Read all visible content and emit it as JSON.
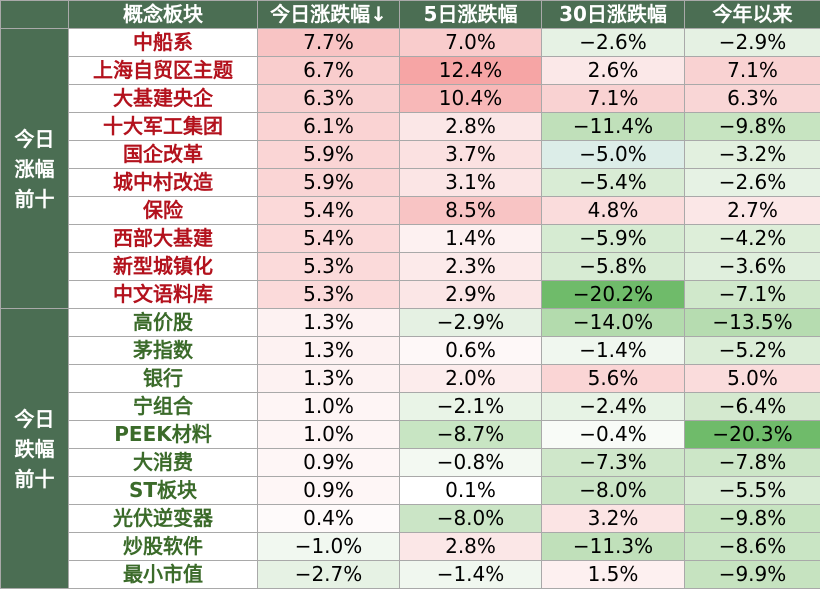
{
  "headers": [
    "概念板块",
    "今日涨跌幅↓",
    "5日涨跌幅",
    "30日涨跌幅",
    "今年以来"
  ],
  "groups": [
    {
      "label": "今日涨幅前十",
      "type": "top",
      "rows": [
        {
          "name": "中船系",
          "values": [
            "7.7%",
            "7.0%",
            "−2.6%",
            "−2.9%"
          ],
          "colors": [
            "#f8c4c4",
            "#f9cccc",
            "#e6f2e4",
            "#e5f1e3"
          ]
        },
        {
          "name": "上海自贸区主题",
          "values": [
            "6.7%",
            "12.4%",
            "2.6%",
            "7.1%"
          ],
          "colors": [
            "#f9cdcd",
            "#f6a5a5",
            "#fbe8e8",
            "#f9d2d2"
          ]
        },
        {
          "name": "大基建央企",
          "values": [
            "6.3%",
            "10.4%",
            "7.1%",
            "6.3%"
          ],
          "colors": [
            "#f9d0d0",
            "#f8b8b8",
            "#f9d2d2",
            "#f9d6d6"
          ]
        },
        {
          "name": "十大军工集团",
          "values": [
            "6.1%",
            "2.8%",
            "−11.4%",
            "−9.8%"
          ],
          "colors": [
            "#fad3d3",
            "#fbe7e7",
            "#c0e0ba",
            "#c7e4c1"
          ]
        },
        {
          "name": "国企改革",
          "values": [
            "5.9%",
            "3.7%",
            "−5.0%",
            "−3.2%"
          ],
          "colors": [
            "#fad5d5",
            "#fbe1e1",
            "#dcede8",
            "#e2f0df"
          ]
        },
        {
          "name": "城中村改造",
          "values": [
            "5.9%",
            "3.1%",
            "−5.4%",
            "−2.6%"
          ],
          "colors": [
            "#fad5d5",
            "#fbe5e5",
            "#d9ecd5",
            "#e6f2e4"
          ]
        },
        {
          "name": "保险",
          "values": [
            "5.4%",
            "8.5%",
            "4.8%",
            "2.7%"
          ],
          "colors": [
            "#fbd9d9",
            "#f8c4c4",
            "#fadcdc",
            "#fbe7e7"
          ]
        },
        {
          "name": "西部大基建",
          "values": [
            "5.4%",
            "1.4%",
            "−5.9%",
            "−4.2%"
          ],
          "colors": [
            "#fbd9d9",
            "#fdf1f1",
            "#d6ebd2",
            "#ddeed9"
          ]
        },
        {
          "name": "新型城镇化",
          "values": [
            "5.3%",
            "2.3%",
            "−5.8%",
            "−3.6%"
          ],
          "colors": [
            "#fbdada",
            "#fceaea",
            "#d7ebd3",
            "#e0efdd"
          ]
        },
        {
          "name": "中文语料库",
          "values": [
            "5.3%",
            "2.9%",
            "−20.2%",
            "−7.1%"
          ],
          "colors": [
            "#fbdada",
            "#fbe6e6",
            "#6fbb6a",
            "#d0e8cb"
          ]
        }
      ]
    },
    {
      "label": "今日跌幅前十",
      "type": "bottom",
      "rows": [
        {
          "name": "高价股",
          "values": [
            "1.3%",
            "−2.9%",
            "−14.0%",
            "−13.5%"
          ],
          "colors": [
            "#fdf2f2",
            "#e5f1e3",
            "#b3dbad",
            "#b6dcb0"
          ]
        },
        {
          "name": "茅指数",
          "values": [
            "1.3%",
            "0.6%",
            "−1.4%",
            "−5.2%"
          ],
          "colors": [
            "#fdf2f2",
            "#fef8f8",
            "#f0f7ef",
            "#dbedd7"
          ]
        },
        {
          "name": "银行",
          "values": [
            "1.3%",
            "2.0%",
            "5.6%",
            "5.0%"
          ],
          "colors": [
            "#fdf2f2",
            "#fcecec",
            "#fad5d5",
            "#fadcdc"
          ]
        },
        {
          "name": "宁组合",
          "values": [
            "1.0%",
            "−2.1%",
            "−2.4%",
            "−6.4%"
          ],
          "colors": [
            "#fef5f5",
            "#e9f4e7",
            "#e7f3e5",
            "#d4e9cf"
          ]
        },
        {
          "name": "PEEK材料",
          "values": [
            "1.0%",
            "−8.7%",
            "−0.4%",
            "−20.3%"
          ],
          "colors": [
            "#fef5f5",
            "#c8e5c3",
            "#f8fbf7",
            "#6fbb6a"
          ]
        },
        {
          "name": "大消费",
          "values": [
            "0.9%",
            "−0.8%",
            "−7.3%",
            "−7.8%"
          ],
          "colors": [
            "#fef6f6",
            "#f3f9f2",
            "#cfe7ca",
            "#cce6c7"
          ]
        },
        {
          "name": "ST板块",
          "values": [
            "0.9%",
            "0.1%",
            "−8.0%",
            "−5.5%"
          ],
          "colors": [
            "#fef6f6",
            "#ffffff",
            "#cbe5c6",
            "#d9ecd5"
          ]
        },
        {
          "name": "光伏逆变器",
          "values": [
            "0.4%",
            "−8.0%",
            "3.2%",
            "−9.8%"
          ],
          "colors": [
            "#fefafa",
            "#cbe5c6",
            "#fbe4e4",
            "#c7e4c1"
          ]
        },
        {
          "name": "炒股软件",
          "values": [
            "−1.0%",
            "2.8%",
            "−11.3%",
            "−8.6%"
          ],
          "colors": [
            "#f1f8f0",
            "#fbe7e7",
            "#c0e0ba",
            "#c9e5c4"
          ]
        },
        {
          "name": "最小市值",
          "values": [
            "−2.7%",
            "−1.4%",
            "1.5%",
            "−9.9%"
          ],
          "colors": [
            "#e6f2e4",
            "#f0f7ef",
            "#fdf0f0",
            "#c6e3c0"
          ]
        }
      ]
    }
  ]
}
